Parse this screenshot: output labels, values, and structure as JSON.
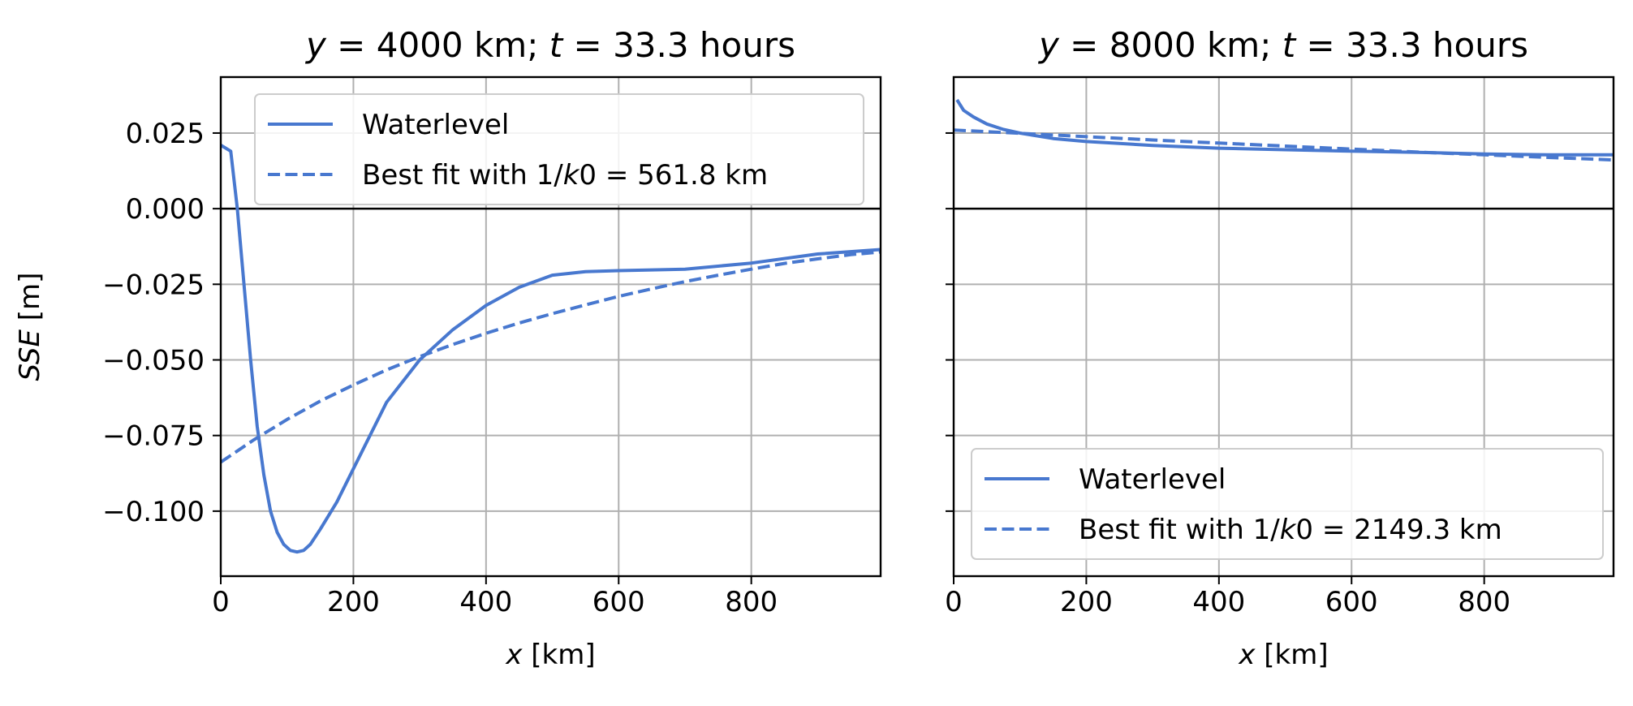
{
  "chart_data": [
    {
      "type": "line",
      "title_parts": [
        {
          "text": "y",
          "italic": true
        },
        {
          "text": " = 4000 km; ",
          "italic": false
        },
        {
          "text": "t",
          "italic": true
        },
        {
          "text": " = 33.3 hours",
          "italic": false
        }
      ],
      "xlabel_parts": [
        {
          "text": "x",
          "italic": true
        },
        {
          "text": " [km]",
          "italic": false
        }
      ],
      "ylabel_parts": [
        {
          "text": "SSE",
          "italic": true
        },
        {
          "text": " [m]",
          "italic": false
        }
      ],
      "xlim": [
        0,
        995
      ],
      "ylim": [
        -0.1215,
        0.0435
      ],
      "xticks": [
        0,
        200,
        400,
        600,
        800
      ],
      "xtick_labels": [
        "0",
        "200",
        "400",
        "600",
        "800"
      ],
      "yticks": [
        0.025,
        0.0,
        -0.025,
        -0.05,
        -0.075,
        -0.1
      ],
      "ytick_labels": [
        "0.025",
        "0.000",
        "−0.025",
        "−0.050",
        "−0.075",
        "−0.100"
      ],
      "show_ytick_labels": true,
      "grid": true,
      "hline_at_zero": true,
      "legend_position": "top-right",
      "series": [
        {
          "name": "Waterlevel",
          "style": "solid",
          "color": "#4878CF",
          "x": [
            0,
            15,
            25,
            35,
            45,
            55,
            65,
            75,
            85,
            95,
            105,
            115,
            125,
            135,
            150,
            175,
            200,
            250,
            300,
            350,
            400,
            450,
            500,
            550,
            600,
            700,
            800,
            900,
            995
          ],
          "y": [
            0.021,
            0.019,
            0.0,
            -0.025,
            -0.05,
            -0.072,
            -0.088,
            -0.1,
            -0.107,
            -0.111,
            -0.113,
            -0.1135,
            -0.113,
            -0.111,
            -0.106,
            -0.097,
            -0.086,
            -0.064,
            -0.05,
            -0.04,
            -0.032,
            -0.026,
            -0.022,
            -0.0208,
            -0.0205,
            -0.02,
            -0.018,
            -0.015,
            -0.0135
          ]
        },
        {
          "name_parts": [
            {
              "text": "Best fit with 1/",
              "italic": false
            },
            {
              "text": "k",
              "italic": true
            },
            {
              "text": "0 = 561.8 km",
              "italic": false
            }
          ],
          "style": "dashed",
          "color": "#4878CF",
          "x": [
            0,
            50,
            100,
            150,
            200,
            250,
            300,
            350,
            400,
            450,
            500,
            550,
            600,
            650,
            700,
            750,
            800,
            850,
            900,
            950,
            995
          ],
          "y": [
            -0.0838,
            -0.0764,
            -0.0697,
            -0.0636,
            -0.0583,
            -0.0533,
            -0.0489,
            -0.0449,
            -0.0412,
            -0.0378,
            -0.0347,
            -0.0318,
            -0.029,
            -0.0265,
            -0.0241,
            -0.022,
            -0.02,
            -0.0181,
            -0.0166,
            -0.0152,
            -0.0143
          ]
        }
      ]
    },
    {
      "type": "line",
      "title_parts": [
        {
          "text": "y",
          "italic": true
        },
        {
          "text": " = 8000 km; ",
          "italic": false
        },
        {
          "text": "t",
          "italic": true
        },
        {
          "text": " = 33.3 hours",
          "italic": false
        }
      ],
      "xlabel_parts": [
        {
          "text": "x",
          "italic": true
        },
        {
          "text": " [km]",
          "italic": false
        }
      ],
      "ylabel_parts": [],
      "xlim": [
        0,
        995
      ],
      "ylim": [
        -0.1215,
        0.0435
      ],
      "xticks": [
        0,
        200,
        400,
        600,
        800
      ],
      "xtick_labels": [
        "0",
        "200",
        "400",
        "600",
        "800"
      ],
      "yticks": [
        0.025,
        0.0,
        -0.025,
        -0.05,
        -0.075,
        -0.1
      ],
      "ytick_labels": [],
      "show_ytick_labels": false,
      "grid": true,
      "hline_at_zero": true,
      "legend_position": "bottom-right",
      "series": [
        {
          "name": "Waterlevel",
          "style": "solid",
          "color": "#4878CF",
          "x": [
            5,
            15,
            30,
            50,
            75,
            100,
            150,
            200,
            300,
            400,
            500,
            600,
            700,
            800,
            900,
            995
          ],
          "y": [
            0.036,
            0.0325,
            0.0303,
            0.028,
            0.0262,
            0.025,
            0.0232,
            0.0222,
            0.0209,
            0.02,
            0.0195,
            0.019,
            0.0186,
            0.0181,
            0.0178,
            0.0178
          ]
        },
        {
          "name_parts": [
            {
              "text": "Best fit with 1/",
              "italic": false
            },
            {
              "text": "k",
              "italic": true
            },
            {
              "text": "0 = 2149.3 km",
              "italic": false
            }
          ],
          "style": "dashed",
          "color": "#4878CF",
          "x": [
            0,
            100,
            200,
            300,
            400,
            500,
            600,
            700,
            800,
            900,
            995
          ],
          "y": [
            0.026,
            0.0249,
            0.0238,
            0.0227,
            0.0217,
            0.0207,
            0.0197,
            0.0187,
            0.0178,
            0.0169,
            0.0161
          ]
        }
      ]
    }
  ]
}
